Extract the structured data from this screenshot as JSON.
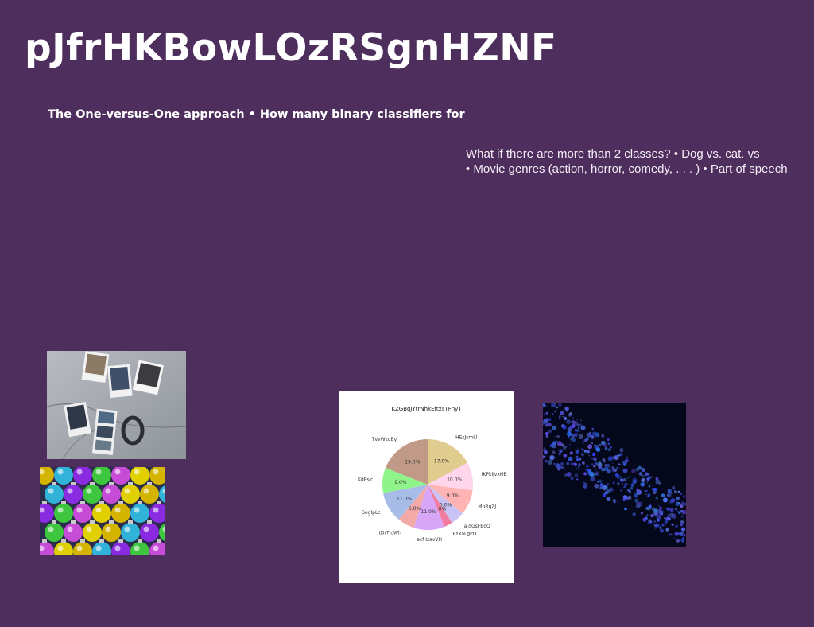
{
  "slide": {
    "title": "pJfrHKBowLOzRSgnHZNF",
    "subtitle": "The One-versus-One approach • How many binary classifiers for",
    "body_lines": [
      "What if there are more than 2 classes? • Dog vs. cat. vs",
      "• Movie genres (action, horror, comedy, . . . ) • Part of speech"
    ]
  },
  "images": {
    "photos": "instant-photos-on-concrete-image",
    "ornaments": "colorful-ornaments-image",
    "pie": "pie-chart-image",
    "sparkle": "blue-particles-image"
  },
  "chart_data": {
    "type": "pie",
    "title": "KZGBqJYtrNhkEftxsTFnyT",
    "categories": [
      "HEsJsmLl",
      "iKPkljvxHE",
      "MpRqZJ",
      "a qGsFBoQ",
      "EYxaLgPD",
      "acf IzavVH",
      "tDrTloWh",
      "GoglpLc",
      "KdFsic",
      "TvvWzgBy"
    ],
    "values": [
      17.0,
      10.0,
      9.0,
      5.0,
      3.0,
      11.0,
      6.0,
      11.0,
      9.0,
      19.0
    ],
    "labels_pct": [
      "17.0%",
      "10.0%",
      "9.0%",
      "5.0%",
      "3.0%",
      "11.0%",
      "6.0%",
      "11.0%",
      "9.0%",
      "19.0%"
    ],
    "colors": [
      "#e0cc8e",
      "#ffd6ec",
      "#ffb3b3",
      "#c9c2f5",
      "#f27ca0",
      "#d7a6f7",
      "#f4a9a9",
      "#a7bde8",
      "#8ff58a",
      "#c09a86"
    ]
  }
}
